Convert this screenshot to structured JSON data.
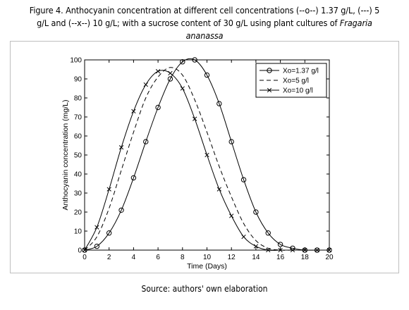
{
  "figure": {
    "caption_main": "Figure 4. Anthocyanin concentration at different cell concentrations (--o--) 1.37 g/L, (---) 5 g/L and (--x--) 10 g/L; with a sucrose content of 30 g/L using plant cultures of ",
    "caption_species": "Fragaria ananassa",
    "source": "Source: authors' own elaboration"
  },
  "chart_data": {
    "type": "line",
    "title": "",
    "xlabel": "Time (Days)",
    "ylabel": "Anthocyanin concentration (mg/L)",
    "xlim": [
      0,
      20
    ],
    "ylim": [
      0,
      100
    ],
    "xticks": [
      0,
      2,
      4,
      6,
      8,
      10,
      12,
      14,
      16,
      18,
      20
    ],
    "yticks": [
      0,
      10,
      20,
      30,
      40,
      50,
      60,
      70,
      80,
      90,
      100
    ],
    "grid": false,
    "legend_position": "top-right",
    "series": [
      {
        "name": "Xo=1.37 g/l",
        "style": "solid",
        "marker": "o",
        "x": [
          0,
          1,
          2,
          3,
          4,
          5,
          6,
          7,
          8,
          9,
          10,
          11,
          12,
          13,
          14,
          15,
          16,
          17,
          18,
          19,
          20
        ],
        "y": [
          0,
          2,
          9,
          21,
          38,
          57,
          75,
          90,
          99,
          100,
          92,
          77,
          57,
          37,
          20,
          9,
          3,
          1,
          0,
          0,
          0
        ]
      },
      {
        "name": "Xo=5 g/l",
        "style": "dashed",
        "marker": "none",
        "x": [
          0,
          1,
          2,
          3,
          4,
          5,
          6,
          7,
          8,
          9,
          10,
          11,
          12,
          13,
          14,
          15,
          16,
          17,
          18,
          19,
          20
        ],
        "y": [
          0,
          7,
          22,
          42,
          62,
          80,
          91,
          96,
          92,
          79,
          62,
          44,
          28,
          14,
          5,
          1,
          0,
          0,
          0,
          0,
          0
        ]
      },
      {
        "name": "Xo=10 g/l",
        "style": "solid",
        "marker": "x",
        "x": [
          0,
          1,
          2,
          3,
          4,
          5,
          6,
          7,
          8,
          9,
          10,
          11,
          12,
          13,
          14,
          15,
          16,
          17,
          18,
          19,
          20
        ],
        "y": [
          0,
          12,
          32,
          54,
          73,
          87,
          94,
          93,
          85,
          69,
          50,
          32,
          18,
          7,
          2,
          0,
          0,
          0,
          0,
          0,
          0
        ]
      }
    ]
  }
}
